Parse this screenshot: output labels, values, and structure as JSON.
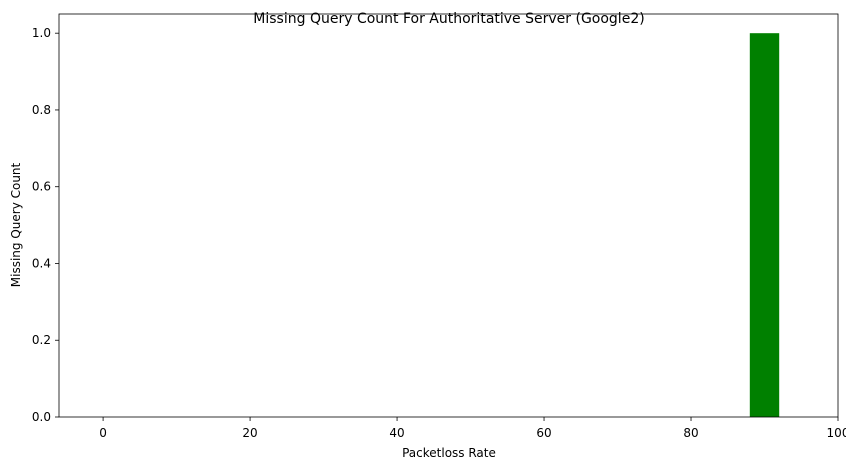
{
  "chart_data": {
    "type": "bar",
    "title": "Missing Query Count For Authoritative Server (Google2)",
    "xlabel": "Packetloss Rate",
    "ylabel": "Missing Query Count",
    "x": [
      0,
      10,
      20,
      30,
      40,
      50,
      60,
      70,
      80,
      90
    ],
    "values": [
      0,
      0,
      0,
      0,
      0,
      0,
      0,
      0,
      0,
      1
    ],
    "bar_width": 4,
    "bar_color": "#008000",
    "xlim": [
      -6,
      100
    ],
    "ylim": [
      0,
      1.05
    ],
    "xticks": [
      0,
      20,
      40,
      60,
      80,
      100
    ],
    "xtick_labels": [
      "0",
      "20",
      "40",
      "60",
      "80",
      "100"
    ],
    "yticks": [
      0,
      0.2,
      0.4,
      0.6,
      0.8,
      1.0
    ],
    "ytick_labels": [
      "0.0",
      "0.2",
      "0.4",
      "0.6",
      "0.8",
      "1.0"
    ],
    "grid": false,
    "legend": "none"
  }
}
